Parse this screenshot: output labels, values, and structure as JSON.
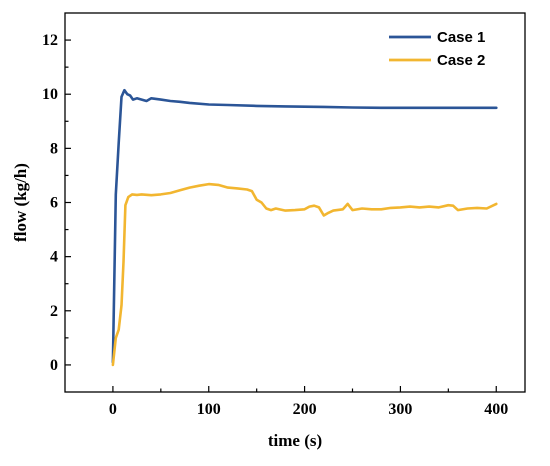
{
  "chart_data": {
    "type": "line",
    "title": "",
    "xlabel": "time (s)",
    "ylabel": "flow (kg/h)",
    "xlim": [
      -50,
      430
    ],
    "ylim": [
      -1,
      13
    ],
    "xticks": [
      0,
      100,
      200,
      300,
      400
    ],
    "yticks": [
      0,
      2,
      4,
      6,
      8,
      10,
      12
    ],
    "xtick_labels": [
      "0",
      "100",
      "200",
      "300",
      "400"
    ],
    "ytick_labels": [
      "0",
      "2",
      "4",
      "6",
      "8",
      "10",
      "12"
    ],
    "grid": false,
    "legend_position": "top-right",
    "series": [
      {
        "name": "Case 1",
        "color": "#2b5597",
        "x": [
          0,
          3,
          6,
          9,
          12,
          15,
          18,
          21,
          25,
          30,
          35,
          40,
          50,
          60,
          70,
          80,
          100,
          120,
          150,
          180,
          200,
          220,
          250,
          280,
          300,
          320,
          350,
          380,
          400
        ],
        "y": [
          0.1,
          6.3,
          8.2,
          9.9,
          10.15,
          10.0,
          9.95,
          9.8,
          9.85,
          9.8,
          9.75,
          9.85,
          9.8,
          9.75,
          9.72,
          9.68,
          9.62,
          9.6,
          9.57,
          9.55,
          9.54,
          9.53,
          9.51,
          9.5,
          9.5,
          9.5,
          9.5,
          9.5,
          9.5
        ]
      },
      {
        "name": "Case 2",
        "color": "#f2b630",
        "x": [
          0,
          3,
          6,
          9,
          11,
          13,
          16,
          20,
          25,
          30,
          40,
          50,
          60,
          70,
          80,
          90,
          100,
          110,
          120,
          130,
          140,
          145,
          150,
          155,
          160,
          165,
          170,
          180,
          190,
          200,
          205,
          210,
          215,
          220,
          225,
          230,
          240,
          245,
          250,
          260,
          270,
          280,
          290,
          300,
          310,
          320,
          330,
          340,
          350,
          355,
          360,
          370,
          380,
          390,
          400
        ],
        "y": [
          0.0,
          1.0,
          1.3,
          2.2,
          3.8,
          5.9,
          6.2,
          6.3,
          6.28,
          6.3,
          6.27,
          6.3,
          6.35,
          6.45,
          6.55,
          6.62,
          6.68,
          6.65,
          6.55,
          6.52,
          6.48,
          6.42,
          6.1,
          6.0,
          5.78,
          5.72,
          5.78,
          5.7,
          5.72,
          5.75,
          5.85,
          5.88,
          5.82,
          5.52,
          5.62,
          5.7,
          5.75,
          5.95,
          5.72,
          5.78,
          5.75,
          5.75,
          5.8,
          5.82,
          5.85,
          5.82,
          5.85,
          5.82,
          5.9,
          5.88,
          5.72,
          5.78,
          5.8,
          5.78,
          5.95
        ]
      }
    ]
  }
}
